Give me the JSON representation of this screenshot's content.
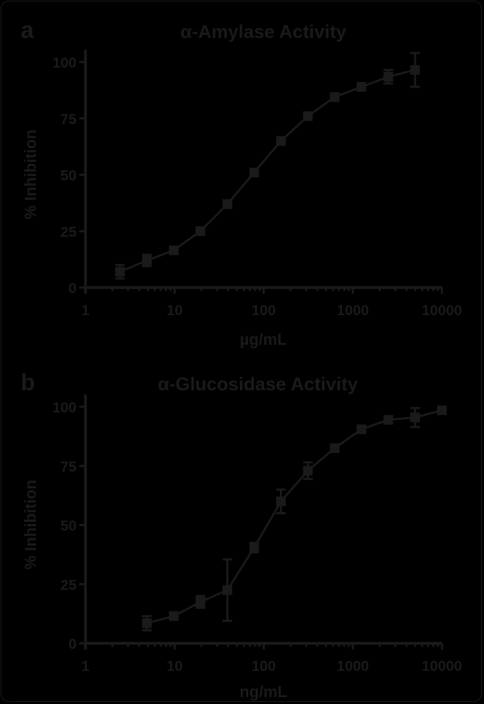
{
  "colors": {
    "background": "#000000",
    "foreground": "#1a1a1a"
  },
  "chart_data": [
    {
      "panel": "a",
      "type": "scatter",
      "title": "α-Amylase Activity",
      "xlabel": "µg/mL",
      "ylabel": "% Inhibition",
      "xscale": "log",
      "xlim": [
        1,
        10000
      ],
      "ylim": [
        0,
        100
      ],
      "xticks": [
        "1",
        "10",
        "100",
        "1000",
        "10000"
      ],
      "yticks": [
        "0",
        "25",
        "50",
        "75",
        "100"
      ],
      "fit": "sigmoidal dose-response curve",
      "x": [
        2.44,
        4.88,
        9.77,
        19.5,
        39.1,
        78.1,
        156,
        313,
        625,
        1250,
        2500,
        5000
      ],
      "y": [
        7,
        12,
        16.5,
        25,
        37,
        51,
        65,
        76,
        84.5,
        89,
        93.5,
        96.5
      ],
      "error": [
        3,
        2.5,
        1,
        1,
        1,
        1,
        1,
        1,
        1,
        1,
        3,
        7.5
      ]
    },
    {
      "panel": "b",
      "type": "scatter",
      "title": "α-Glucosidase Activity",
      "xlabel": "ng/mL",
      "ylabel": "% Inhibition",
      "xscale": "log",
      "xlim": [
        1,
        10000
      ],
      "ylim": [
        0,
        100
      ],
      "xticks": [
        "1",
        "10",
        "100",
        "1000",
        "10000"
      ],
      "yticks": [
        "0",
        "25",
        "50",
        "75",
        "100"
      ],
      "fit": "sigmoidal dose-response curve",
      "x": [
        4.88,
        9.77,
        19.5,
        39.1,
        78.1,
        156,
        313,
        625,
        1250,
        2500,
        5000,
        10000
      ],
      "y": [
        8.5,
        11.5,
        17.5,
        22.5,
        40.5,
        60,
        73,
        82.5,
        90.5,
        94.5,
        95.5,
        98.5
      ],
      "error": [
        3,
        1,
        2.5,
        13,
        2,
        5,
        3.5,
        1.5,
        1,
        1,
        4,
        1
      ]
    }
  ],
  "panels": [
    {
      "label": "a",
      "title": "α-Amylase Activity",
      "xlabel": "µg/mL",
      "ylabel": "% Inhibition"
    },
    {
      "label": "b",
      "title": "α-Glucosidase Activity",
      "xlabel": "ng/mL",
      "ylabel": "% Inhibition"
    }
  ]
}
